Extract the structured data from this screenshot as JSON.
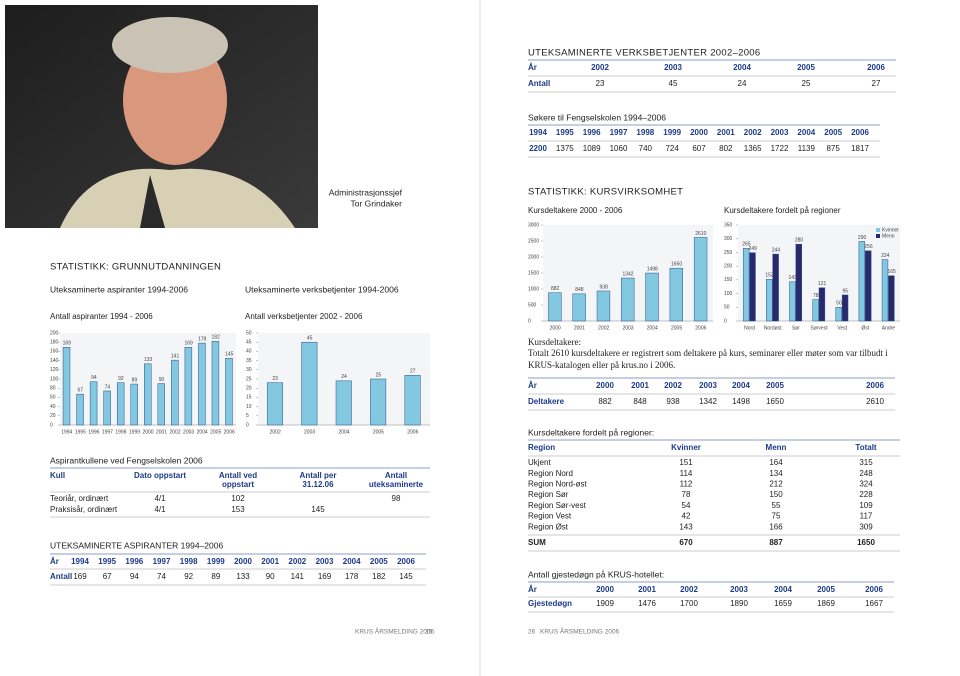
{
  "left_page": {
    "photo_caption": [
      "Administrasjonssjef",
      "Tor Grindaker"
    ],
    "section_title": "STATISTIKK: GRUNNUTDANNINGEN",
    "subheadings": [
      "Uteksaminerte aspiranter 1994-2006",
      "Uteksaminerte verksbetjenter 1994-2006"
    ],
    "table_title": "Aspirantkullene ved Fengselskolen 2006",
    "kull_table": {
      "header": [
        [
          "Kull"
        ],
        [
          "Dato oppstart"
        ],
        [
          "Antall ved",
          "oppstart"
        ],
        [
          "Antall per",
          "31.12.06"
        ],
        [
          "Antall",
          "uteksaminerte"
        ]
      ],
      "rows": [
        [
          "Teoriår, ordinært",
          "4/1",
          102,
          null,
          98
        ],
        [
          "Praksisår, ordinært",
          "4/1",
          153,
          145,
          null
        ]
      ]
    },
    "aspiranter_title": "UTEKSAMINERTE ASPIRANTER 1994–2006",
    "aspiranter_table": {
      "rows": [
        [
          "År",
          1994,
          1995,
          1996,
          1997,
          1998,
          1999,
          2000,
          2001,
          2002,
          2003,
          2004,
          2005,
          2006
        ],
        [
          "Antall",
          169,
          67,
          94,
          74,
          92,
          89,
          133,
          90,
          141,
          169,
          178,
          182,
          145
        ]
      ]
    },
    "footer": {
      "text": "KRUS ÅRSMELDING 2006",
      "page": 25
    }
  },
  "right_page": {
    "verksbetjenter_title": "UTEKSAMINERTE VERKSBETJENTER 2002–2006",
    "verksbetjenter_table": {
      "rows": [
        [
          "År",
          2002,
          2003,
          2004,
          2005,
          2006
        ],
        [
          "Antall",
          23,
          45,
          24,
          25,
          27
        ]
      ]
    },
    "sokere_title": "Søkere til Fengselskolen 1994–2006",
    "sokere_table": {
      "rows": [
        [
          1994,
          1995,
          1996,
          1997,
          1998,
          1999,
          2000,
          2001,
          2002,
          2003,
          2004,
          2005,
          2006
        ],
        [
          2200,
          1375,
          1089,
          1060,
          740,
          724,
          607,
          802,
          1365,
          1722,
          1139,
          875,
          1817
        ]
      ]
    },
    "section_title": "STATISTIKK: KURSVIRKSOMHET",
    "kurs_heading": "Kursdeltakere:",
    "kurs_text": [
      "Totalt 2610 kursdeltakere er registrert som deltakere på kurs, seminarer eller møter som var tilbudt i",
      "KRUS-katalogen eller på krus.no i 2006."
    ],
    "deltakere_table": {
      "rows": [
        [
          "År",
          2000,
          2001,
          2002,
          2003,
          2004,
          2005,
          2006
        ],
        [
          "Deltakere",
          882,
          848,
          938,
          1342,
          1498,
          1650,
          2610
        ]
      ]
    },
    "region_title": "Kursdeltakere fordelt på regioner:",
    "region_table": {
      "header": [
        "Region",
        "Kvinner",
        "Menn",
        "Totalt"
      ],
      "rows": [
        [
          "Ukjent",
          151,
          164,
          315
        ],
        [
          "Region Nord",
          114,
          134,
          248
        ],
        [
          "Region Nord-øst",
          112,
          212,
          324
        ],
        [
          "Region Sør",
          78,
          150,
          228
        ],
        [
          "Region Sør-vest",
          54,
          55,
          109
        ],
        [
          "Region Vest",
          42,
          75,
          117
        ],
        [
          "Region Øst",
          143,
          166,
          309
        ]
      ],
      "sum": [
        "SUM",
        670,
        887,
        1650
      ]
    },
    "gjest_title": "Antall gjestedøgn på KRUS-hotellet:",
    "gjest_table": {
      "rows": [
        [
          "År",
          2000,
          2001,
          2002,
          2003,
          2004,
          2005,
          2006
        ],
        [
          "Gjestedøgn",
          1909,
          1476,
          1700,
          1890,
          1659,
          1869,
          1667
        ]
      ]
    },
    "footer": {
      "page": 26,
      "text": "KRUS ÅRSMELDING 2006"
    }
  },
  "chart_data": [
    {
      "type": "bar",
      "title": "Antall aspiranter 1994 - 2006",
      "categories": [
        "1994",
        "1995",
        "1996",
        "1997",
        "1998",
        "1999",
        "2000",
        "2001",
        "2002",
        "2003",
        "2004",
        "2005",
        "2006"
      ],
      "values": [
        169,
        67,
        94,
        74,
        92,
        89,
        133,
        90,
        141,
        169,
        178,
        182,
        145
      ],
      "color": "#82c8e0",
      "ylim": [
        0,
        200
      ],
      "yticks": [
        0,
        20,
        40,
        60,
        80,
        100,
        120,
        140,
        160,
        180,
        200
      ]
    },
    {
      "type": "bar",
      "title": "Antall verksbetjenter 2002 - 2006",
      "categories": [
        "2002",
        "2003",
        "2004",
        "2005",
        "2006"
      ],
      "values": [
        23,
        45,
        24,
        25,
        27
      ],
      "color": "#82c8e0",
      "ylim": [
        0,
        50
      ],
      "yticks": [
        0,
        5,
        10,
        15,
        20,
        25,
        30,
        35,
        40,
        45,
        50
      ]
    },
    {
      "type": "bar",
      "title": "Kursdeltakere 2000 - 2006",
      "categories": [
        "2000",
        "2001",
        "2002",
        "2003",
        "2004",
        "2005",
        "2006"
      ],
      "values": [
        882,
        848,
        938,
        1342,
        1498,
        1650,
        2610
      ],
      "color": "#82c8e0",
      "ylim": [
        0,
        3000
      ],
      "yticks": [
        0,
        500,
        1000,
        1500,
        2000,
        2500,
        3000
      ]
    },
    {
      "type": "bar",
      "title": "Kursdeltakere fordelt på regioner",
      "categories": [
        "Nord",
        "Nordøst",
        "Sør",
        "Sørvest",
        "Vest",
        "Øst",
        "Andre"
      ],
      "series": [
        {
          "name": "Kvinner",
          "color": "#82c8e0",
          "values": [
            265,
            152,
            143,
            78,
            50,
            290,
            224
          ]
        },
        {
          "name": "Menn",
          "color": "#28296b",
          "values": [
            249,
            244,
            280,
            121,
            95,
            256,
            165
          ]
        }
      ],
      "legend": "upper right",
      "ylim": [
        0,
        350
      ],
      "yticks": [
        0,
        50,
        100,
        150,
        200,
        250,
        300,
        350
      ]
    }
  ]
}
